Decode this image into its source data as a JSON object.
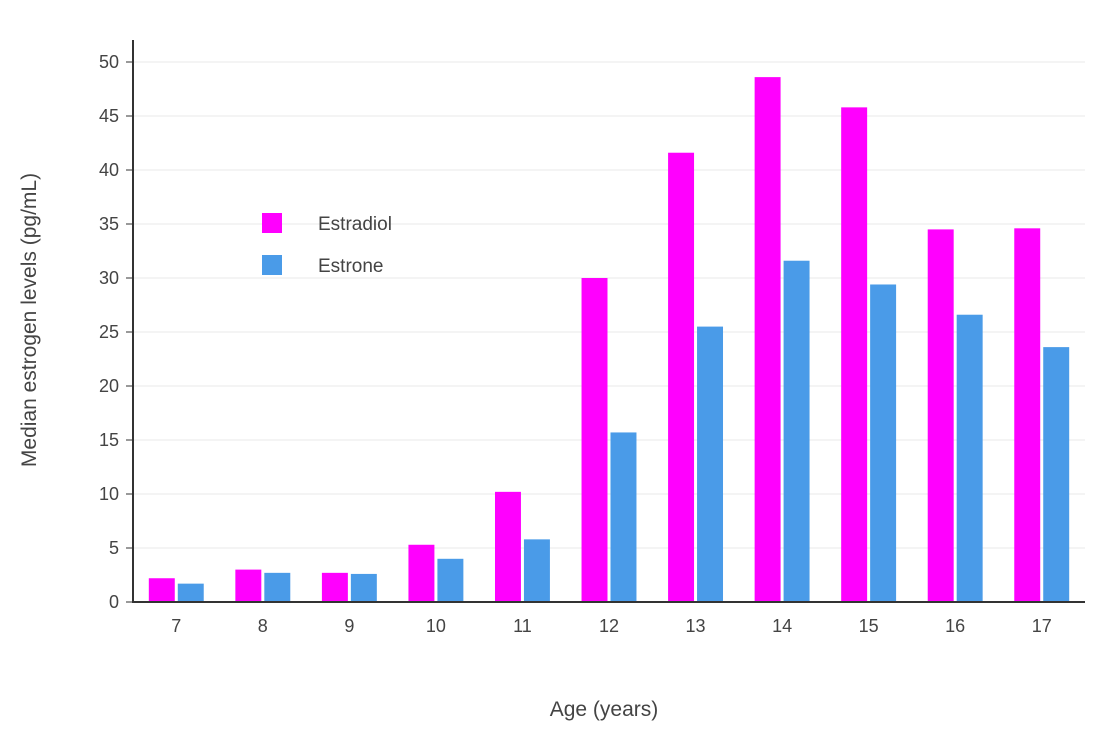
{
  "chart_data": {
    "type": "bar",
    "title": "",
    "xlabel": "Age (years)",
    "ylabel": "Median estrogen levels (pg/mL)",
    "categories": [
      7,
      8,
      9,
      10,
      11,
      12,
      13,
      14,
      15,
      16,
      17
    ],
    "series": [
      {
        "name": "Estradiol",
        "color": "#FF00FE",
        "values": [
          2.2,
          3.0,
          2.7,
          5.3,
          10.2,
          30.0,
          41.6,
          48.6,
          45.8,
          34.5,
          34.6
        ]
      },
      {
        "name": "Estrone",
        "color": "#4A9BE8",
        "values": [
          1.7,
          2.7,
          2.6,
          4.0,
          5.8,
          15.7,
          25.5,
          31.6,
          29.4,
          26.6,
          23.6
        ]
      }
    ],
    "ylim": [
      0,
      50
    ],
    "yticks": [
      0,
      5,
      10,
      15,
      20,
      25,
      30,
      35,
      40,
      45,
      50
    ],
    "grid": true,
    "legend_position": "inside-top-left"
  },
  "colors": {
    "grid": "#E8E8E8",
    "axis": "#333333",
    "text": "#444444"
  }
}
